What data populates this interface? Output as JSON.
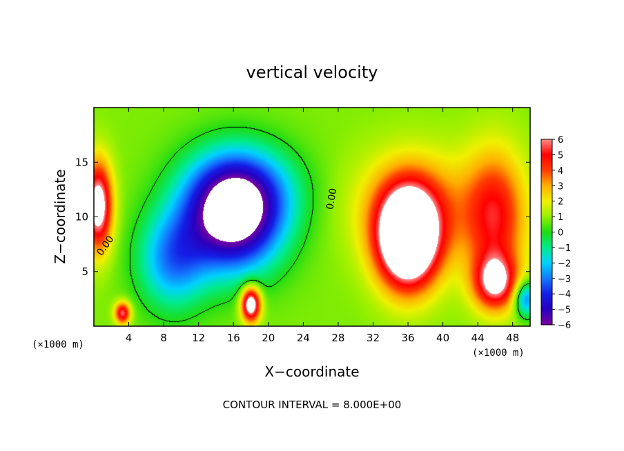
{
  "chart_data": {
    "type": "heatmap",
    "title": "vertical velocity",
    "xlabel": "X−coordinate",
    "ylabel": "Z−coordinate",
    "x_unit": "(×1000 m)",
    "z_unit": "(×1000 m)",
    "xlim": [
      0,
      50
    ],
    "ylim": [
      0,
      20
    ],
    "x_ticks": [
      "4",
      "8",
      "12",
      "16",
      "20",
      "24",
      "28",
      "32",
      "36",
      "40",
      "44",
      "48"
    ],
    "x_tick_values": [
      4,
      8,
      12,
      16,
      20,
      24,
      28,
      32,
      36,
      40,
      44,
      48
    ],
    "y_ticks": [
      "5",
      "10",
      "15"
    ],
    "y_tick_values": [
      5,
      10,
      15
    ],
    "colorbar": {
      "min": -6,
      "max": 6,
      "tick_labels": [
        "6",
        "5",
        "4",
        "3",
        "2",
        "1",
        "0",
        "−1",
        "−2",
        "−3",
        "−4",
        "−5",
        "−6"
      ],
      "tick_values": [
        6,
        5,
        4,
        3,
        2,
        1,
        0,
        -1,
        -2,
        -3,
        -4,
        -5,
        -6
      ]
    },
    "contour_labels": [
      {
        "text": "0.00",
        "x": 1.6,
        "z": 7.2,
        "angle": -55
      },
      {
        "text": "0.00",
        "x": 27.6,
        "z": 11.6,
        "angle": -80
      }
    ],
    "contour_interval_text": "CONTOUR INTERVAL = 8.000E+00",
    "field_features": [
      {
        "desc": "downdraft",
        "x": 16,
        "z": 10,
        "sx": 5.5,
        "sz": 5.0,
        "amp": -7.5
      },
      {
        "desc": "downdraft",
        "x": 17,
        "z": 12.5,
        "sx": 6.5,
        "sz": 4.0,
        "amp": -2.5
      },
      {
        "desc": "downdraft",
        "x": 9,
        "z": 6,
        "sx": 4.0,
        "sz": 4.5,
        "amp": -3.5
      },
      {
        "desc": "updraft",
        "x": 36,
        "z": 8,
        "sx": 3.5,
        "sz": 4.5,
        "amp": 9.5
      },
      {
        "desc": "updraft",
        "x": 37,
        "z": 11,
        "sx": 7.0,
        "sz": 5.0,
        "amp": 2.5
      },
      {
        "desc": "updraft",
        "x": 46,
        "z": 10,
        "sx": 3.5,
        "sz": 6.0,
        "amp": 4.0
      },
      {
        "desc": "updraft",
        "x": 46,
        "z": 4,
        "sx": 2.5,
        "sz": 2.5,
        "amp": 5.0
      },
      {
        "desc": "updraft",
        "x": 0.5,
        "z": 11,
        "sx": 1.6,
        "sz": 4.0,
        "amp": 6.5
      },
      {
        "desc": "updraft",
        "x": 18,
        "z": 2,
        "sx": 1.1,
        "sz": 1.6,
        "amp": 7.0
      },
      {
        "desc": "updraft",
        "x": 3.3,
        "z": 1.2,
        "sx": 0.9,
        "sz": 1.0,
        "amp": 5.0
      },
      {
        "desc": "downdraft",
        "x": 49.5,
        "z": 2.5,
        "sx": 1.3,
        "sz": 1.6,
        "amp": -4.0
      }
    ]
  }
}
